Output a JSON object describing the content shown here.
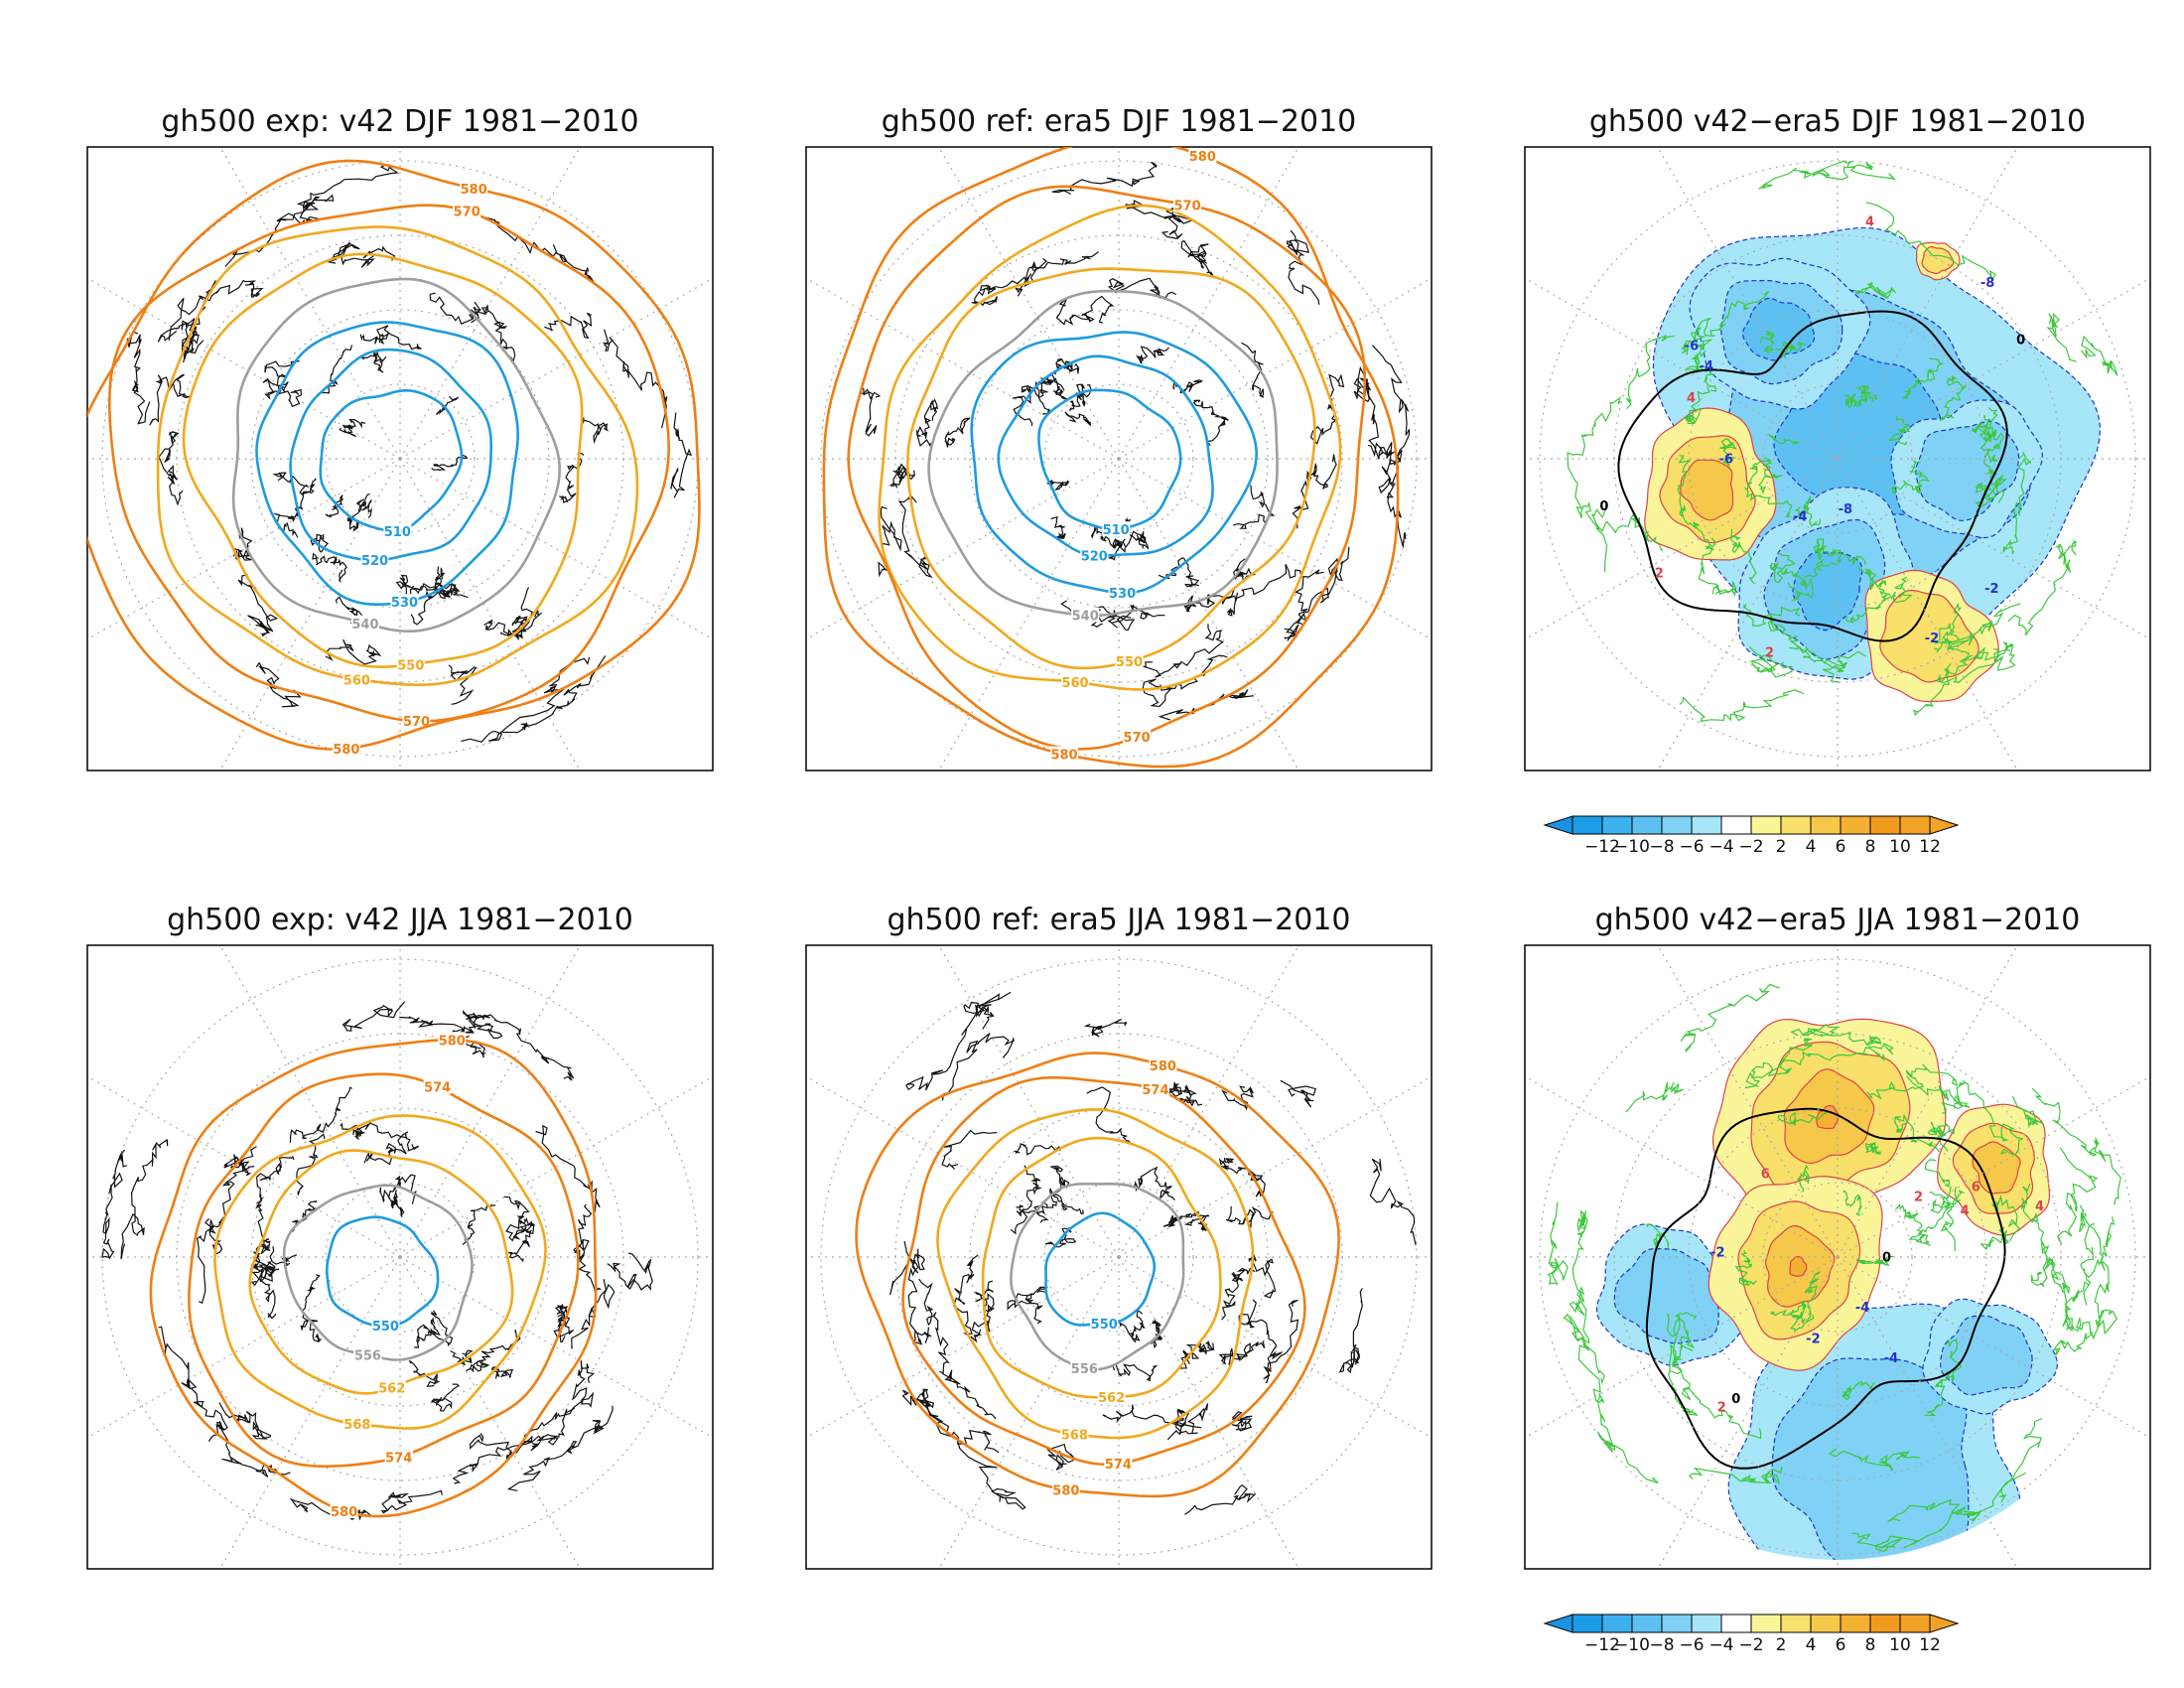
{
  "panels": [
    {
      "title": "gh500   exp: v42   DJF 1981−2010",
      "kind": "field",
      "season": "DJF",
      "contours": [
        {
          "label": "510",
          "color": "#1E9BE0"
        },
        {
          "label": "520",
          "color": "#1E9BE0"
        },
        {
          "label": "530",
          "color": "#1E9BE0"
        },
        {
          "label": "540",
          "color": "#9E9E9E"
        },
        {
          "label": "550",
          "color": "#F2A81C"
        },
        {
          "label": "560",
          "color": "#F2A81C"
        },
        {
          "label": "570",
          "color": "#F07E12"
        },
        {
          "label": "580",
          "color": "#F07E12"
        }
      ]
    },
    {
      "title": "gh500   ref: era5   DJF 1981−2010",
      "kind": "field",
      "season": "DJF",
      "contours": [
        {
          "label": "510",
          "color": "#1E9BE0"
        },
        {
          "label": "520",
          "color": "#1E9BE0"
        },
        {
          "label": "530",
          "color": "#1E9BE0"
        },
        {
          "label": "540",
          "color": "#9E9E9E"
        },
        {
          "label": "550",
          "color": "#F2A81C"
        },
        {
          "label": "560",
          "color": "#F2A81C"
        },
        {
          "label": "570",
          "color": "#F07E12"
        },
        {
          "label": "580",
          "color": "#F07E12"
        }
      ]
    },
    {
      "title": "gh500   v42−era5   DJF 1981−2010",
      "kind": "diff",
      "season": "DJF",
      "labels": [
        "-2",
        "-4",
        "-6",
        "-8",
        "2",
        "4",
        "0"
      ]
    },
    {
      "title": "gh500   exp: v42   JJA 1981−2010",
      "kind": "field",
      "season": "JJA",
      "contours": [
        {
          "label": "550",
          "color": "#1E9BE0"
        },
        {
          "label": "556",
          "color": "#9E9E9E"
        },
        {
          "label": "562",
          "color": "#F2A81C"
        },
        {
          "label": "568",
          "color": "#F2A81C"
        },
        {
          "label": "574",
          "color": "#F07E12"
        },
        {
          "label": "580",
          "color": "#F07E12"
        }
      ]
    },
    {
      "title": "gh500   ref: era5   JJA 1981−2010",
      "kind": "field",
      "season": "JJA",
      "contours": [
        {
          "label": "550",
          "color": "#1E9BE0"
        },
        {
          "label": "556",
          "color": "#9E9E9E"
        },
        {
          "label": "562",
          "color": "#F2A81C"
        },
        {
          "label": "568",
          "color": "#F2A81C"
        },
        {
          "label": "574",
          "color": "#F07E12"
        },
        {
          "label": "580",
          "color": "#F07E12"
        }
      ]
    },
    {
      "title": "gh500   v42−era5   JJA 1981−2010",
      "kind": "diff",
      "season": "JJA",
      "labels": [
        "-2",
        "-4",
        "2",
        "4",
        "6",
        "0"
      ]
    }
  ],
  "colorbar": {
    "ticks": [
      "−12",
      "−10",
      "−8",
      "−6",
      "−4",
      "−2",
      "2",
      "4",
      "6",
      "8",
      "10",
      "12"
    ],
    "colors": [
      "#1A9CE6",
      "#3DB0EE",
      "#5CC1F2",
      "#7FD2F5",
      "#A6E6F8",
      "#FFFFFF",
      "#FBF59A",
      "#F8E06A",
      "#F6C84A",
      "#F4B030",
      "#F29A1E",
      "#F2A226"
    ],
    "under_color": "#1A93E2",
    "over_color": "#F2A226"
  },
  "colors": {
    "coast": "#111111",
    "diff_coast": "#3CC83C",
    "grid": "#AAAAAA",
    "neg_line": "#2233CC",
    "pos_line": "#E0404A",
    "zero_line": "#000000"
  }
}
